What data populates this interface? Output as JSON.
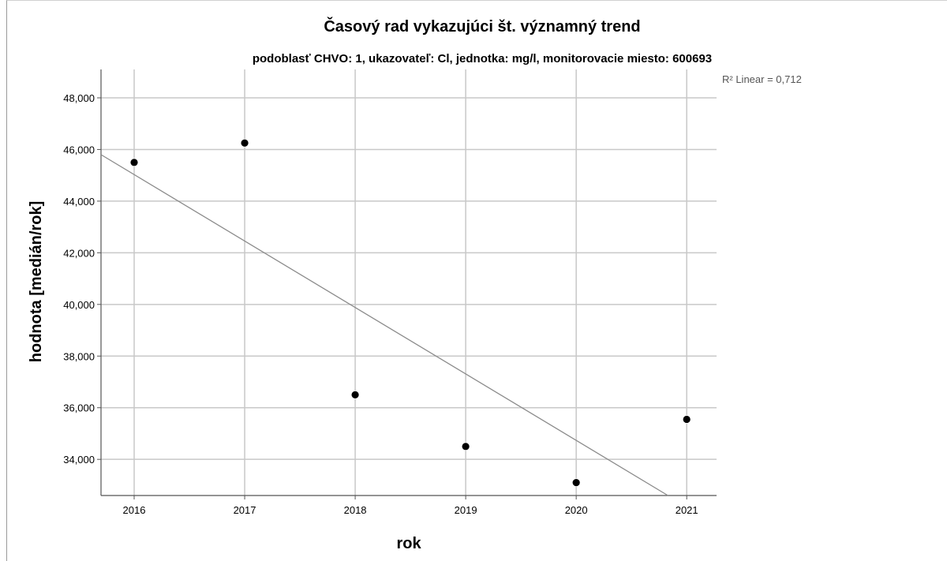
{
  "chart_data": {
    "type": "scatter",
    "title": "Časový rad vykazujúci št. významný trend",
    "subtitle": "podoblasť CHVO: 1, ukazovateľ: Cl, jednotka: mg/l, monitorovacie miesto: 600693",
    "xlabel": "rok",
    "ylabel": "hodnota [medián/rok]",
    "x_ticks": [
      "2016",
      "2017",
      "2018",
      "2019",
      "2020",
      "2021"
    ],
    "y_ticks": [
      "34,000",
      "36,000",
      "38,000",
      "40,000",
      "42,000",
      "44,000",
      "46,000",
      "48,000"
    ],
    "xlim": [
      2015.7,
      2021.27
    ],
    "ylim": [
      32.6,
      49.1
    ],
    "grid": true,
    "points": [
      {
        "x": 2016,
        "y": 45.5
      },
      {
        "x": 2017,
        "y": 46.25
      },
      {
        "x": 2018,
        "y": 36.5
      },
      {
        "x": 2019,
        "y": 34.5
      },
      {
        "x": 2020,
        "y": 33.1
      },
      {
        "x": 2021,
        "y": 35.55
      }
    ],
    "fit_line": {
      "type": "linear",
      "start": {
        "x": 2015.7,
        "y": 45.8
      },
      "end": {
        "x": 2020.83,
        "y": 32.6
      }
    },
    "annotation": "R² Linear = 0,712",
    "colors": {
      "points": "#000000",
      "fit_line": "#8a8a8a",
      "grid": "#c8c8c8",
      "axis": "#555555"
    }
  }
}
